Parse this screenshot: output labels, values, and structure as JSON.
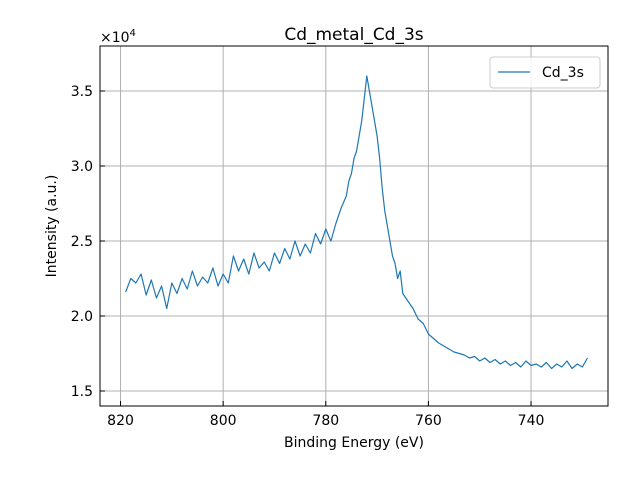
{
  "chart_data": {
    "type": "line",
    "title": "Cd_metal_Cd_3s",
    "xlabel": "Binding Energy (eV)",
    "ylabel": "Intensity (a.u.)",
    "y_multiplier": "×10",
    "y_multiplier_exp": "4",
    "xlim": [
      824,
      725
    ],
    "ylim": [
      1.4,
      3.8
    ],
    "x_reversed": true,
    "grid": true,
    "legend_position": "top-right",
    "xticks": [
      820,
      800,
      780,
      760,
      740
    ],
    "xtick_labels": [
      "820",
      "800",
      "780",
      "760",
      "740"
    ],
    "yticks": [
      1.5,
      2.0,
      2.5,
      3.0,
      3.5
    ],
    "ytick_labels": [
      "1.5",
      "2.0",
      "2.5",
      "3.0",
      "3.5"
    ],
    "series": [
      {
        "name": "Cd_3s",
        "color": "#1f77b4",
        "x": [
          819.0,
          818.0,
          817.0,
          816.0,
          815.0,
          814.0,
          813.0,
          812.0,
          811.0,
          810.0,
          809.0,
          808.0,
          807.0,
          806.0,
          805.0,
          804.0,
          803.0,
          802.0,
          801.0,
          800.0,
          799.0,
          798.0,
          797.0,
          796.0,
          795.0,
          794.0,
          793.0,
          792.0,
          791.0,
          790.0,
          789.0,
          788.0,
          787.0,
          786.0,
          785.0,
          784.0,
          783.0,
          782.0,
          781.0,
          780.0,
          779.0,
          778.0,
          777.0,
          776.0,
          775.5,
          775.0,
          774.5,
          774.0,
          773.5,
          773.0,
          772.5,
          772.0,
          771.5,
          771.0,
          770.5,
          770.0,
          769.5,
          769.0,
          768.5,
          768.0,
          767.5,
          767.0,
          766.5,
          766.0,
          765.5,
          765.0,
          764.0,
          763.0,
          762.0,
          761.0,
          760.0,
          759.0,
          758.0,
          757.0,
          756.0,
          755.0,
          754.0,
          753.0,
          752.0,
          751.0,
          750.0,
          749.0,
          748.0,
          747.0,
          746.0,
          745.0,
          744.0,
          743.0,
          742.0,
          741.0,
          740.0,
          739.0,
          738.0,
          737.0,
          736.0,
          735.0,
          734.0,
          733.0,
          732.0,
          731.0,
          730.0,
          729.0
        ],
        "values": [
          2.16,
          2.25,
          2.22,
          2.28,
          2.14,
          2.24,
          2.12,
          2.2,
          2.05,
          2.22,
          2.15,
          2.25,
          2.18,
          2.3,
          2.2,
          2.26,
          2.22,
          2.32,
          2.2,
          2.28,
          2.22,
          2.4,
          2.3,
          2.38,
          2.28,
          2.42,
          2.32,
          2.36,
          2.3,
          2.42,
          2.35,
          2.45,
          2.38,
          2.5,
          2.4,
          2.48,
          2.42,
          2.55,
          2.48,
          2.58,
          2.5,
          2.62,
          2.72,
          2.8,
          2.9,
          2.95,
          3.05,
          3.1,
          3.2,
          3.3,
          3.45,
          3.6,
          3.5,
          3.4,
          3.3,
          3.2,
          3.05,
          2.85,
          2.7,
          2.6,
          2.5,
          2.4,
          2.35,
          2.25,
          2.3,
          2.15,
          2.1,
          2.05,
          1.98,
          1.95,
          1.88,
          1.85,
          1.82,
          1.8,
          1.78,
          1.76,
          1.75,
          1.74,
          1.72,
          1.73,
          1.7,
          1.72,
          1.69,
          1.71,
          1.68,
          1.7,
          1.67,
          1.69,
          1.66,
          1.7,
          1.67,
          1.68,
          1.66,
          1.69,
          1.65,
          1.68,
          1.66,
          1.7,
          1.65,
          1.68,
          1.66,
          1.72
        ]
      }
    ]
  }
}
